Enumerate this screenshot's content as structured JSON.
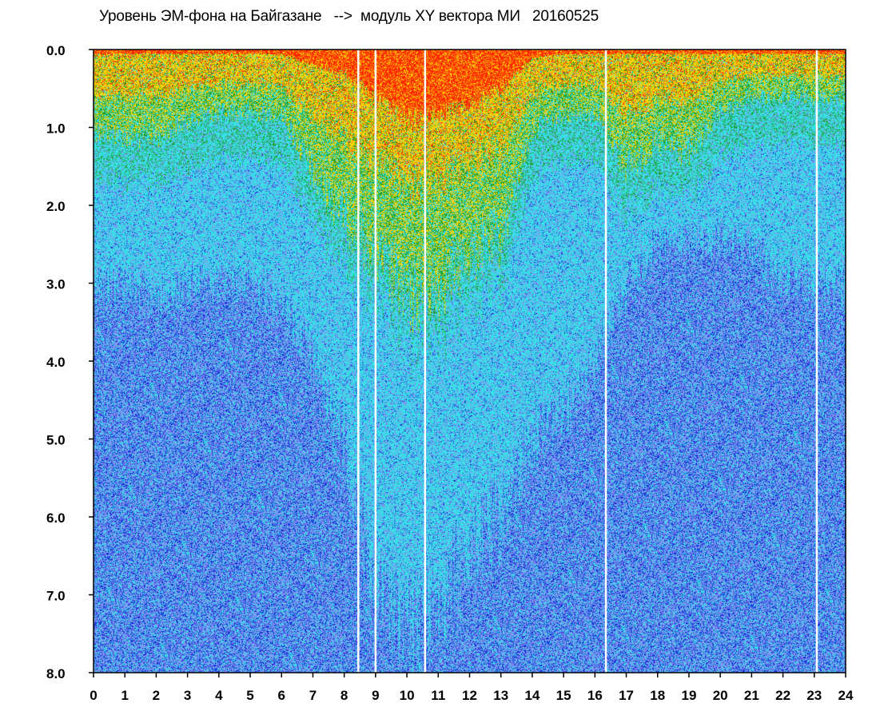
{
  "chart_data": {
    "type": "heatmap",
    "title": "Уровень ЭМ-фона на Байгазане   -->  модуль XY вектора МИ   20160525",
    "xlabel": "",
    "ylabel": "",
    "xlim": [
      0,
      24
    ],
    "ylim": [
      0,
      8
    ],
    "y_inverted": true,
    "x_ticks": [
      "0",
      "1",
      "2",
      "3",
      "4",
      "5",
      "6",
      "7",
      "8",
      "9",
      "10",
      "11",
      "12",
      "13",
      "14",
      "15",
      "16",
      "17",
      "18",
      "19",
      "20",
      "21",
      "22",
      "23",
      "24"
    ],
    "y_ticks": [
      "0.0",
      "1.0",
      "2.0",
      "3.0",
      "4.0",
      "5.0",
      "6.0",
      "7.0",
      "8.0"
    ],
    "grid": false,
    "legend": "none",
    "colorscale": [
      "#ff2a00",
      "#ffd400",
      "#1a9a1a",
      "#36e0e6",
      "#7f92f0",
      "#1a2ad8"
    ],
    "gap_columns_x": [
      8.45,
      9.0,
      10.58,
      16.35,
      23.08
    ],
    "intensity_profile": {
      "hours": [
        0,
        1,
        2,
        3,
        4,
        5,
        6,
        7,
        8,
        9,
        10,
        11,
        12,
        13,
        14,
        15,
        16,
        17,
        18,
        19,
        20,
        21,
        22,
        23,
        24
      ],
      "yellow_green_depth": [
        1.0,
        1.1,
        1.1,
        0.9,
        0.8,
        0.8,
        0.8,
        1.6,
        2.1,
        2.6,
        3.2,
        3.0,
        2.6,
        2.4,
        1.0,
        0.8,
        0.8,
        1.5,
        1.2,
        1.3,
        0.8,
        0.6,
        0.6,
        0.6,
        0.6
      ],
      "red_depth": [
        0.05,
        0.05,
        0.05,
        0.05,
        0.05,
        0.05,
        0.05,
        0.2,
        0.3,
        0.6,
        0.9,
        0.8,
        0.7,
        0.5,
        0.1,
        0.05,
        0.05,
        0.05,
        0.05,
        0.05,
        0.05,
        0.05,
        0.05,
        0.05,
        0.05
      ],
      "blue_onset_depth": [
        3.0,
        3.0,
        3.2,
        3.0,
        3.0,
        3.0,
        3.2,
        4.0,
        5.0,
        7.0,
        7.5,
        7.0,
        6.5,
        6.0,
        5.0,
        4.5,
        4.0,
        3.0,
        2.5,
        2.5,
        2.5,
        2.5,
        3.0,
        3.0,
        3.0
      ]
    }
  }
}
